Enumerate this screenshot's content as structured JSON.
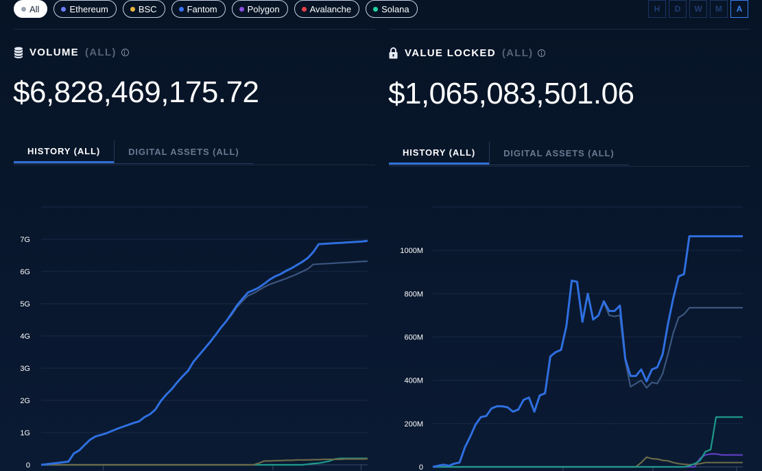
{
  "filters": {
    "chains": [
      {
        "label": "All",
        "color": "#9aa3b2",
        "active": true
      },
      {
        "label": "Ethereum",
        "color": "#6d7cff",
        "active": false
      },
      {
        "label": "BSC",
        "color": "#e8b341",
        "active": false
      },
      {
        "label": "Fantom",
        "color": "#3b74f0",
        "active": false
      },
      {
        "label": "Polygon",
        "color": "#8a4fe0",
        "active": false
      },
      {
        "label": "Avalanche",
        "color": "#e84148",
        "active": false
      },
      {
        "label": "Solana",
        "color": "#21d3a5",
        "active": false
      }
    ],
    "timeframes": [
      {
        "label": "H",
        "active": false
      },
      {
        "label": "D",
        "active": false
      },
      {
        "label": "W",
        "active": false
      },
      {
        "label": "M",
        "active": false
      },
      {
        "label": "A",
        "active": true
      }
    ]
  },
  "volume": {
    "title": "VOLUME",
    "scope": "(ALL)",
    "value": "$6,828,469,175.72",
    "tabs": [
      {
        "label": "HISTORY (ALL)",
        "active": true
      },
      {
        "label": "DIGITAL ASSETS (ALL)",
        "active": false
      }
    ]
  },
  "value_locked": {
    "title": "VALUE LOCKED",
    "scope": "(ALL)",
    "value": "$1,065,083,501.06",
    "tabs": [
      {
        "label": "HISTORY (ALL)",
        "active": true
      },
      {
        "label": "DIGITAL ASSETS (ALL)",
        "active": false
      }
    ]
  },
  "chart_data": [
    {
      "type": "line",
      "title": "",
      "y_tick_labels": [
        "0",
        "1G",
        "2G",
        "3G",
        "4G",
        "5G",
        "6G",
        "7G"
      ],
      "ylim": [
        0,
        8
      ],
      "y_unit_hint": "billions",
      "x": [
        0,
        1,
        2,
        3,
        4,
        5,
        6,
        7,
        8,
        9,
        10,
        11,
        12,
        13,
        14,
        15,
        16,
        17,
        18,
        19,
        20,
        21,
        22,
        23,
        24,
        25,
        26,
        27,
        28,
        29,
        30,
        31,
        32,
        33,
        34,
        35,
        36,
        37,
        38,
        39,
        40,
        41,
        42,
        43,
        44,
        45,
        46,
        47,
        48,
        49,
        50,
        51,
        52,
        53,
        54,
        55,
        56,
        57,
        58,
        59,
        60
      ],
      "series": [
        {
          "color": "#2f6fe0",
          "values": [
            0,
            0.02,
            0.04,
            0.06,
            0.08,
            0.1,
            0.35,
            0.45,
            0.62,
            0.78,
            0.88,
            0.93,
            0.98,
            1.05,
            1.12,
            1.18,
            1.24,
            1.3,
            1.35,
            1.48,
            1.57,
            1.72,
            1.98,
            2.18,
            2.35,
            2.56,
            2.75,
            2.92,
            3.2,
            3.4,
            3.6,
            3.8,
            4.02,
            4.25,
            4.45,
            4.7,
            4.95,
            5.15,
            5.35,
            5.42,
            5.5,
            5.62,
            5.75,
            5.85,
            5.92,
            6.02,
            6.1,
            6.2,
            6.3,
            6.42,
            6.6,
            6.85,
            6.86,
            6.87,
            6.88,
            6.89,
            6.9,
            6.91,
            6.92,
            6.93,
            6.95
          ]
        },
        {
          "color": "#3c5680",
          "values": [
            0,
            0.02,
            0.04,
            0.06,
            0.08,
            0.1,
            0.35,
            0.45,
            0.62,
            0.78,
            0.88,
            0.93,
            0.98,
            1.05,
            1.12,
            1.18,
            1.24,
            1.3,
            1.35,
            1.48,
            1.57,
            1.72,
            1.98,
            2.18,
            2.35,
            2.56,
            2.75,
            2.92,
            3.2,
            3.4,
            3.6,
            3.8,
            4.02,
            4.25,
            4.45,
            4.65,
            4.9,
            5.08,
            5.25,
            5.32,
            5.42,
            5.52,
            5.6,
            5.66,
            5.72,
            5.78,
            5.85,
            5.92,
            6.0,
            6.08,
            6.22,
            6.23,
            6.24,
            6.25,
            6.26,
            6.27,
            6.28,
            6.29,
            6.3,
            6.31,
            6.32
          ]
        },
        {
          "color": "#6b6a4a",
          "values": [
            0,
            0,
            0,
            0,
            0,
            0,
            0,
            0,
            0,
            0,
            0,
            0,
            0,
            0,
            0,
            0,
            0,
            0,
            0,
            0,
            0,
            0,
            0,
            0,
            0,
            0,
            0,
            0,
            0,
            0,
            0,
            0,
            0,
            0,
            0,
            0,
            0,
            0,
            0,
            0,
            0.05,
            0.12,
            0.12,
            0.13,
            0.13,
            0.14,
            0.14,
            0.15,
            0.15,
            0.15,
            0.16,
            0.16,
            0.17,
            0.17,
            0.17,
            0.17,
            0.18,
            0.18,
            0.18,
            0.18,
            0.19
          ]
        },
        {
          "color": "#1e9a8a",
          "values": [
            0,
            0,
            0,
            0,
            0,
            0,
            0,
            0,
            0,
            0,
            0,
            0,
            0,
            0,
            0,
            0,
            0,
            0,
            0,
            0,
            0,
            0,
            0,
            0,
            0,
            0,
            0,
            0,
            0,
            0,
            0,
            0,
            0,
            0,
            0,
            0,
            0,
            0,
            0,
            0,
            0,
            0,
            0,
            0,
            0,
            0,
            0,
            0,
            0,
            0.02,
            0.04,
            0.05,
            0.08,
            0.12,
            0.18,
            0.2,
            0.2,
            0.2,
            0.2,
            0.2,
            0.2
          ]
        }
      ]
    },
    {
      "type": "line",
      "title": "",
      "y_tick_labels": [
        "0",
        "200M",
        "400M",
        "600M",
        "800M",
        "1000M"
      ],
      "ylim": [
        0,
        1200
      ],
      "y_unit_hint": "millions",
      "x": [
        0,
        1,
        2,
        3,
        4,
        5,
        6,
        7,
        8,
        9,
        10,
        11,
        12,
        13,
        14,
        15,
        16,
        17,
        18,
        19,
        20,
        21,
        22,
        23,
        24,
        25,
        26,
        27,
        28,
        29,
        30,
        31,
        32,
        33,
        34,
        35,
        36,
        37,
        38,
        39,
        40,
        41,
        42,
        43,
        44,
        45,
        46,
        47,
        48,
        49,
        50,
        51,
        52,
        53,
        54,
        55,
        56,
        57,
        58
      ],
      "series": [
        {
          "color": "#2f6fe0",
          "values": [
            0,
            5,
            10,
            5,
            15,
            20,
            90,
            140,
            195,
            230,
            235,
            270,
            280,
            280,
            275,
            255,
            265,
            310,
            320,
            255,
            330,
            340,
            510,
            530,
            540,
            650,
            860,
            855,
            670,
            800,
            680,
            700,
            765,
            720,
            720,
            745,
            500,
            420,
            420,
            450,
            395,
            450,
            460,
            520,
            660,
            780,
            880,
            890,
            1065,
            1065,
            1065,
            1065,
            1065,
            1065,
            1065,
            1065,
            1065,
            1065,
            1065
          ]
        },
        {
          "color": "#3c5680",
          "values": [
            0,
            5,
            10,
            5,
            15,
            20,
            90,
            140,
            195,
            230,
            235,
            270,
            280,
            280,
            275,
            255,
            265,
            310,
            320,
            255,
            330,
            340,
            510,
            530,
            540,
            650,
            860,
            855,
            670,
            800,
            680,
            700,
            760,
            700,
            695,
            700,
            490,
            370,
            385,
            400,
            365,
            390,
            385,
            430,
            520,
            620,
            690,
            705,
            735,
            735,
            735,
            735,
            735,
            735,
            735,
            735,
            735,
            735,
            735
          ]
        },
        {
          "color": "#1e9a8a",
          "values": [
            0,
            0,
            0,
            0,
            0,
            0,
            0,
            0,
            0,
            0,
            0,
            0,
            0,
            0,
            0,
            0,
            0,
            0,
            0,
            0,
            0,
            0,
            0,
            0,
            0,
            0,
            0,
            0,
            0,
            0,
            0,
            0,
            0,
            0,
            0,
            0,
            0,
            0,
            0,
            0,
            0,
            0,
            0,
            0,
            0,
            0,
            0,
            0,
            5,
            15,
            30,
            70,
            80,
            230,
            230,
            230,
            230,
            230,
            230
          ]
        },
        {
          "color": "#6b6a4a",
          "values": [
            0,
            0,
            0,
            0,
            0,
            0,
            0,
            0,
            0,
            0,
            0,
            0,
            0,
            0,
            0,
            0,
            0,
            0,
            0,
            0,
            0,
            0,
            0,
            0,
            0,
            0,
            0,
            0,
            0,
            0,
            0,
            0,
            0,
            0,
            0,
            0,
            0,
            0,
            0,
            20,
            45,
            38,
            36,
            30,
            28,
            20,
            15,
            12,
            10,
            12,
            15,
            20,
            20,
            20,
            20,
            20,
            20,
            20,
            20
          ]
        },
        {
          "color": "#5a3ec0",
          "values": [
            0,
            0,
            0,
            0,
            0,
            0,
            0,
            0,
            0,
            0,
            0,
            0,
            0,
            0,
            0,
            0,
            0,
            0,
            0,
            0,
            0,
            0,
            0,
            0,
            0,
            0,
            0,
            0,
            0,
            0,
            0,
            0,
            0,
            0,
            0,
            0,
            0,
            0,
            0,
            0,
            0,
            0,
            0,
            0,
            0,
            0,
            0,
            0,
            0,
            0,
            40,
            55,
            60,
            60,
            55,
            55,
            55,
            55,
            55
          ]
        }
      ]
    }
  ]
}
